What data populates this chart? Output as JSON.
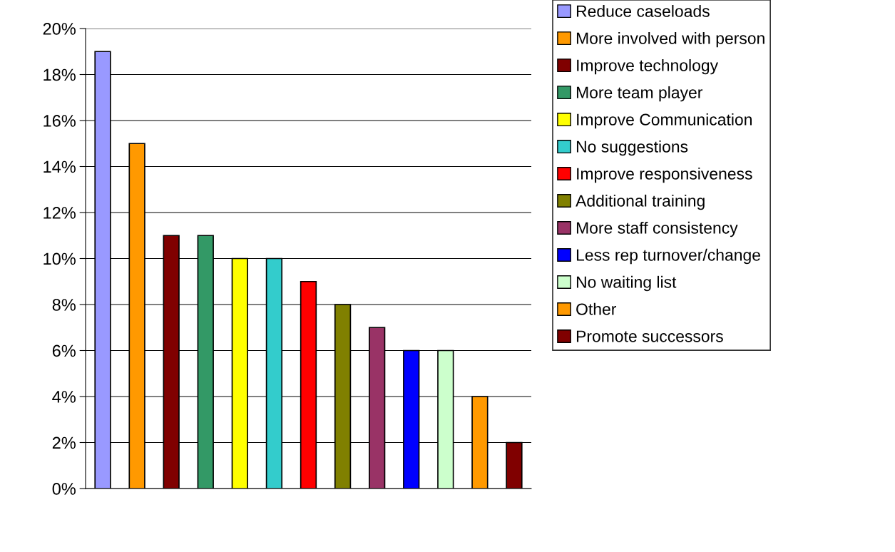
{
  "chart_data": {
    "type": "bar",
    "categories": [
      null,
      null,
      null,
      null,
      null,
      null,
      null,
      null,
      null,
      null,
      null,
      null,
      null
    ],
    "series": [
      {
        "name": "Reduce caseloads",
        "color": "#9999ff",
        "values": [
          19,
          null,
          null,
          null,
          null,
          null,
          null,
          null,
          null,
          null,
          null,
          null,
          null
        ]
      },
      {
        "name": "More involved with person",
        "color": "#ff9900",
        "values": [
          null,
          15,
          null,
          null,
          null,
          null,
          null,
          null,
          null,
          null,
          null,
          null,
          null
        ]
      },
      {
        "name": "Improve technology",
        "color": "#800000",
        "values": [
          null,
          null,
          11,
          null,
          null,
          null,
          null,
          null,
          null,
          null,
          null,
          null,
          null
        ]
      },
      {
        "name": "More team player",
        "color": "#339966",
        "values": [
          null,
          null,
          null,
          11,
          null,
          null,
          null,
          null,
          null,
          null,
          null,
          null,
          null
        ]
      },
      {
        "name": "Improve Communication",
        "color": "#ffff00",
        "values": [
          null,
          null,
          null,
          null,
          10,
          null,
          null,
          null,
          null,
          null,
          null,
          null,
          null
        ]
      },
      {
        "name": "No suggestions",
        "color": "#33cccc",
        "values": [
          null,
          null,
          null,
          null,
          null,
          10,
          null,
          null,
          null,
          null,
          null,
          null,
          null
        ]
      },
      {
        "name": "Improve responsiveness",
        "color": "#ff0000",
        "values": [
          null,
          null,
          null,
          null,
          null,
          null,
          9,
          null,
          null,
          null,
          null,
          null,
          null
        ]
      },
      {
        "name": "Additional training",
        "color": "#808000",
        "values": [
          null,
          null,
          null,
          null,
          null,
          null,
          null,
          8,
          null,
          null,
          null,
          null,
          null
        ]
      },
      {
        "name": "More staff consistency",
        "color": "#993366",
        "values": [
          null,
          null,
          null,
          null,
          null,
          null,
          null,
          null,
          7,
          null,
          null,
          null,
          null
        ]
      },
      {
        "name": "Less rep turnover/change",
        "color": "#0000ff",
        "values": [
          null,
          null,
          null,
          null,
          null,
          null,
          null,
          null,
          null,
          6,
          null,
          null,
          null
        ]
      },
      {
        "name": "No waiting list",
        "color": "#ccffcc",
        "values": [
          null,
          null,
          null,
          null,
          null,
          null,
          null,
          null,
          null,
          null,
          6,
          null,
          null
        ]
      },
      {
        "name": "Other",
        "color": "#ff9900",
        "values": [
          null,
          null,
          null,
          null,
          null,
          null,
          null,
          null,
          null,
          null,
          null,
          4,
          null
        ]
      },
      {
        "name": "Promote successors",
        "color": "#800000",
        "values": [
          null,
          null,
          null,
          null,
          null,
          null,
          null,
          null,
          null,
          null,
          null,
          null,
          2
        ]
      }
    ],
    "ylim": [
      0,
      20
    ],
    "yticks": [
      {
        "value": 0,
        "label": "0%"
      },
      {
        "value": 2,
        "label": "2%"
      },
      {
        "value": 4,
        "label": "4%"
      },
      {
        "value": 6,
        "label": "6%"
      },
      {
        "value": 8,
        "label": "8%"
      },
      {
        "value": 10,
        "label": "10%"
      },
      {
        "value": 12,
        "label": "12%"
      },
      {
        "value": 14,
        "label": "14%"
      },
      {
        "value": 16,
        "label": "16%"
      },
      {
        "value": 18,
        "label": "18%"
      },
      {
        "value": 20,
        "label": "20%"
      }
    ],
    "grid": "y",
    "legend": "right",
    "tick_labels": "y"
  }
}
